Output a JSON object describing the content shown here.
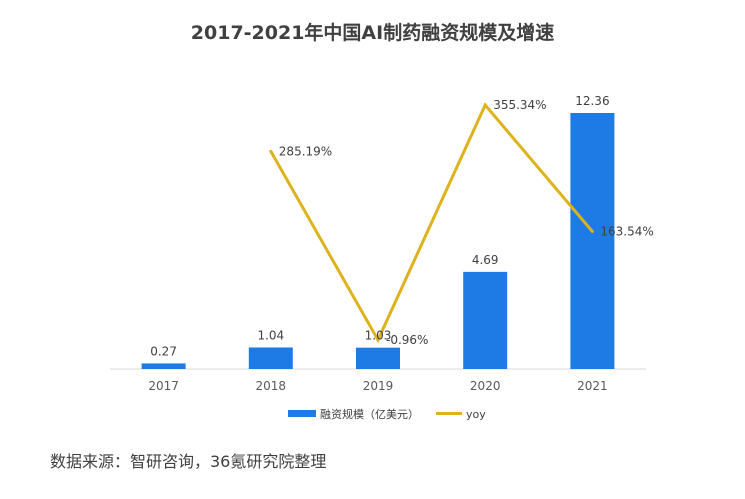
{
  "chart_data": {
    "type": "bar",
    "title": "2017-2021年中国AI制药融资规模及增速",
    "categories": [
      "2017",
      "2018",
      "2019",
      "2020",
      "2021"
    ],
    "series": [
      {
        "name": "融资规模（亿美元）",
        "type": "bar",
        "values": [
          0.27,
          1.04,
          1.03,
          4.69,
          12.36
        ],
        "labels": [
          "0.27",
          "1.04",
          "1.03",
          "4.69",
          "12.36"
        ],
        "color": "#1e7be6"
      },
      {
        "name": "yoy",
        "type": "line",
        "values": [
          null,
          285.19,
          -0.96,
          355.34,
          163.54
        ],
        "labels": [
          null,
          "285.19%",
          "-0.96%",
          "355.34%",
          "163.54%"
        ],
        "color": "#ddb21c"
      }
    ],
    "xlabel": "",
    "ylabel": "",
    "ylim": [
      0,
      12.36
    ],
    "grid": false,
    "legend_position": "bottom"
  },
  "source": "数据来源：智研咨询，36氪研究院整理"
}
